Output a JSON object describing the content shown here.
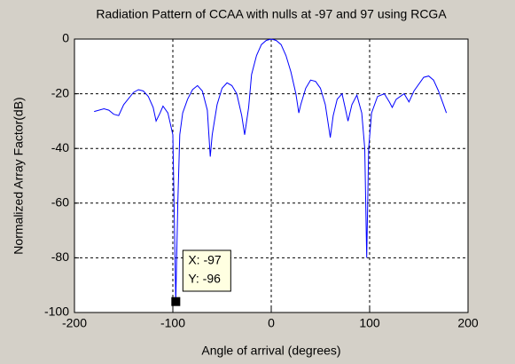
{
  "chart_data": {
    "type": "line",
    "title": "Radiation Pattern of CCAA with nulls at -97 and 97 using RCGA",
    "x_label": "Angle of arrival (degrees)",
    "y_label": "Normalized Array Factor(dB)",
    "x": [
      -180,
      -170,
      -165,
      -160,
      -155,
      -150,
      -140,
      -135,
      -130,
      -125,
      -120,
      -117,
      -113,
      -110,
      -105,
      -100,
      -97,
      -95,
      -93,
      -90,
      -85,
      -80,
      -75,
      -70,
      -65,
      -62,
      -60,
      -55,
      -50,
      -45,
      -40,
      -35,
      -30,
      -27,
      -23,
      -20,
      -15,
      -10,
      -5,
      0,
      5,
      10,
      15,
      20,
      25,
      28,
      30,
      35,
      40,
      45,
      50,
      55,
      60,
      63,
      67,
      72,
      75,
      78,
      82,
      87,
      92,
      95,
      97,
      99,
      102,
      108,
      115,
      120,
      123,
      127,
      135,
      140,
      145,
      155,
      160,
      165,
      170,
      175,
      178
    ],
    "values": [
      -26.5,
      -25.5,
      -26,
      -27.5,
      -28,
      -24,
      -19.5,
      -18.5,
      -19,
      -21,
      -25,
      -30,
      -27,
      -24.5,
      -27,
      -35,
      -96,
      -60,
      -35,
      -27,
      -22,
      -18.5,
      -17,
      -19,
      -26,
      -43,
      -35,
      -24,
      -18,
      -16,
      -17,
      -20,
      -28,
      -35,
      -25,
      -13,
      -6,
      -2,
      -0.5,
      0,
      -0.5,
      -2,
      -6,
      -12,
      -20,
      -27,
      -24,
      -18,
      -15,
      -15.5,
      -18,
      -24,
      -36,
      -28,
      -22,
      -20,
      -25,
      -30,
      -24,
      -20.5,
      -27,
      -40,
      -80,
      -40,
      -27,
      -21,
      -20,
      -23,
      -25,
      -22,
      -20,
      -23,
      -19,
      -14,
      -13.5,
      -15,
      -19,
      -24,
      -27
    ],
    "color": "#0000ff",
    "xlim": [
      -200,
      200
    ],
    "ylim": [
      -100,
      0
    ],
    "xticks": [
      -200,
      -100,
      0,
      100,
      200
    ],
    "yticks": [
      0,
      -20,
      -40,
      -60,
      -80,
      -100
    ],
    "grid": true,
    "datatip": {
      "x": -97,
      "y": -96,
      "x_label": "X: -97",
      "y_label": "Y: -96"
    }
  }
}
